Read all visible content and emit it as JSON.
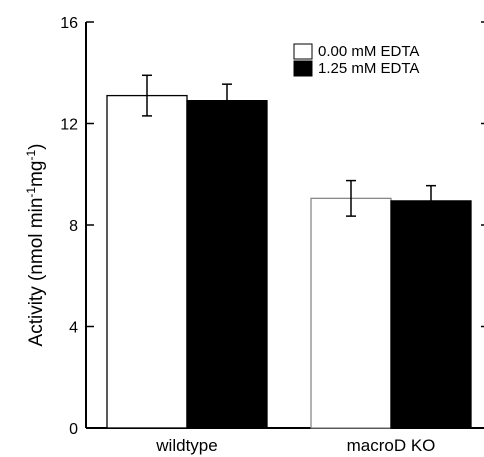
{
  "chart_data": {
    "type": "bar",
    "title": "",
    "xlabel": "",
    "ylabel_parts": [
      "Activity (nmol min",
      "-1",
      "mg",
      "-1",
      ")"
    ],
    "categories": [
      "wildtype",
      "macroD KO"
    ],
    "series": [
      {
        "name": "0.00 mM EDTA",
        "values": [
          13.1,
          9.05
        ],
        "errors": [
          0.8,
          0.7
        ],
        "fill": "#ffffff"
      },
      {
        "name": "1.25 mM EDTA",
        "values": [
          12.9,
          8.95
        ],
        "errors": [
          0.65,
          0.6
        ],
        "fill": "#000000"
      }
    ],
    "ylim": [
      0,
      16
    ],
    "yticks": [
      0,
      4,
      8,
      12,
      16
    ],
    "legend_position": "top-right",
    "grid": false
  }
}
